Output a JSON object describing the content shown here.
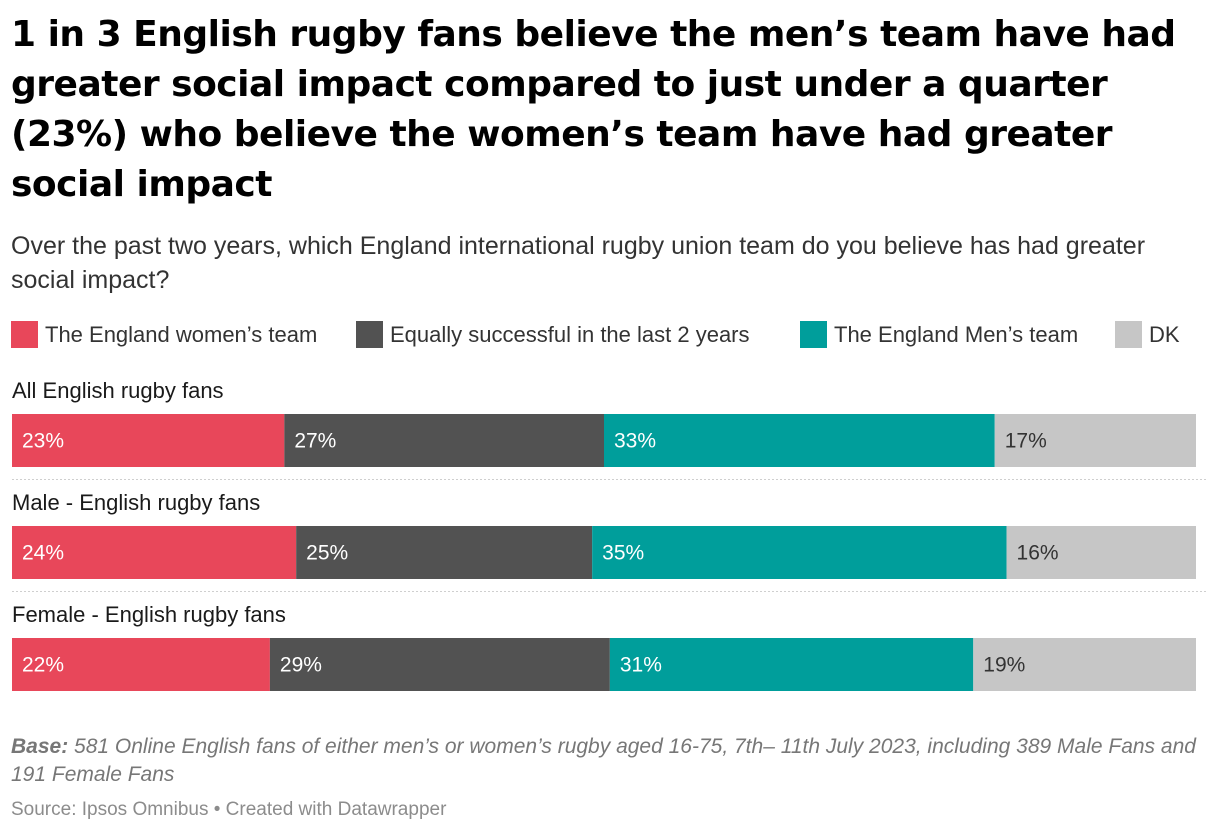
{
  "title": "1 in 3 English rugby fans believe the men’s team have had greater social impact compared to just under a quarter (23%) who believe the women’s team have had greater social impact",
  "subtitle": "Over the past two years, which England international rugby union team do you believe has had greater social impact?",
  "notes": {
    "base_label": "Base:",
    "base_text": "581 Online English fans of either men’s or women’s rugby aged 16-75, 7th– 11th July 2023, including 389 Male Fans and 191 Female Fans",
    "source": "Source: Ipsos Omnibus • Created with Datawrapper"
  },
  "chart_data": {
    "type": "bar",
    "orientation": "horizontal-stacked-100",
    "categories": [
      "All English rugby fans",
      "Male - English rugby fans",
      "Female - English rugby fans"
    ],
    "series": [
      {
        "name": "The England women’s team",
        "color": "#e8475a",
        "label_color": "#ffffff",
        "values": [
          23,
          24,
          22
        ],
        "labels": [
          "23%",
          "24%",
          "22%"
        ]
      },
      {
        "name": "Equally successful in the last 2 years",
        "color": "#525252",
        "label_color": "#ffffff",
        "values": [
          27,
          25,
          29
        ],
        "labels": [
          "27%",
          "25%",
          "29%"
        ]
      },
      {
        "name": "The England Men’s team",
        "color": "#009e9b",
        "label_color": "#ffffff",
        "values": [
          33,
          35,
          31
        ],
        "labels": [
          "33%",
          "35%",
          "31%"
        ]
      },
      {
        "name": "DK",
        "color": "#c6c6c6",
        "label_color": "#333333",
        "values": [
          17,
          16,
          19
        ],
        "labels": [
          "17%",
          "16%",
          "19%"
        ]
      }
    ],
    "legend_position": "top",
    "grid": false
  }
}
